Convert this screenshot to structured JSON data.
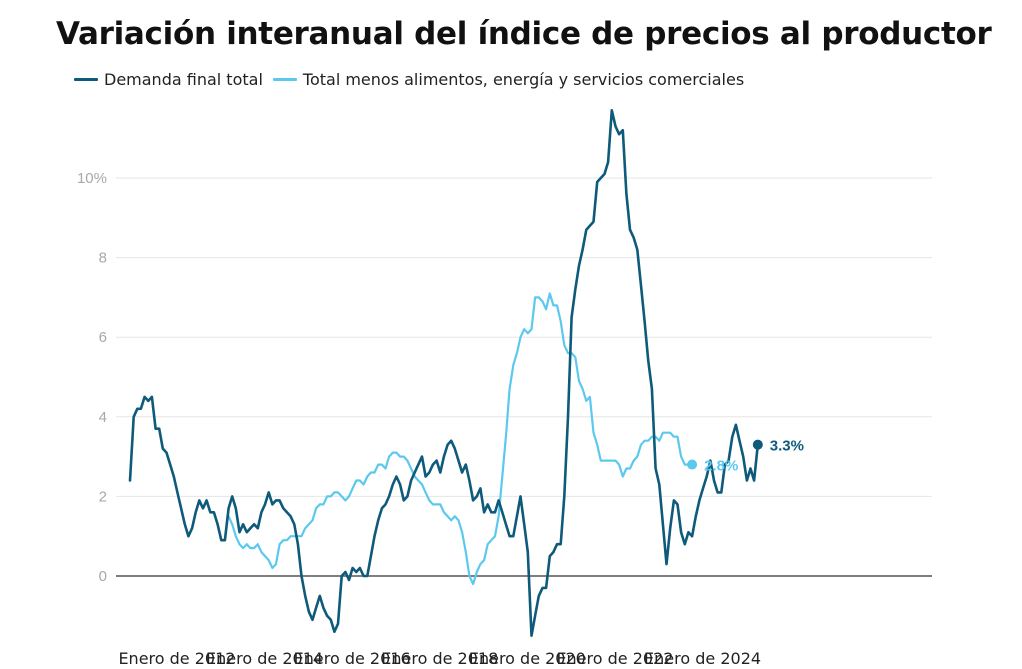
{
  "chart_data": {
    "type": "line",
    "title": "Variación interanual del índice de precios al productor",
    "x_start": "2011-10",
    "x_step": "month",
    "x_tick_labels": [
      "Enero de 2012",
      "Enero de 2014",
      "Enero de 2016",
      "Enero de 2018",
      "Enero de 2020",
      "Enero de 2022",
      "Enero de 2024"
    ],
    "x_tick_dates": [
      "2012-01",
      "2014-01",
      "2016-01",
      "2018-01",
      "2020-01",
      "2022-01",
      "2024-01"
    ],
    "y_ticks": [
      0,
      2,
      4,
      6,
      8,
      10
    ],
    "y_tick_labels": [
      "0",
      "2",
      "4",
      "6",
      "8",
      "10%"
    ],
    "ylim": [
      -1.5,
      12
    ],
    "grid": true,
    "legend": "top-left",
    "series": [
      {
        "name": "Demanda final total",
        "color": "#0e5a7a",
        "start": "2011-10",
        "end_label": "3.3%",
        "values": [
          2.4,
          4.0,
          4.2,
          4.2,
          4.5,
          4.4,
          4.5,
          3.7,
          3.7,
          3.2,
          3.1,
          2.8,
          2.5,
          2.1,
          1.7,
          1.3,
          1.0,
          1.2,
          1.6,
          1.9,
          1.7,
          1.9,
          1.6,
          1.6,
          1.3,
          0.9,
          0.9,
          1.7,
          2.0,
          1.7,
          1.1,
          1.3,
          1.1,
          1.2,
          1.3,
          1.2,
          1.6,
          1.8,
          2.1,
          1.8,
          1.9,
          1.9,
          1.7,
          1.6,
          1.5,
          1.3,
          0.8,
          0.0,
          -0.5,
          -0.9,
          -1.1,
          -0.8,
          -0.5,
          -0.8,
          -1.0,
          -1.1,
          -1.4,
          -1.2,
          0.0,
          0.1,
          -0.1,
          0.2,
          0.1,
          0.2,
          0.0,
          0.0,
          0.5,
          1.0,
          1.4,
          1.7,
          1.8,
          2.0,
          2.3,
          2.5,
          2.3,
          1.9,
          2.0,
          2.4,
          2.6,
          2.8,
          3.0,
          2.5,
          2.6,
          2.8,
          2.9,
          2.6,
          3.0,
          3.3,
          3.4,
          3.2,
          2.9,
          2.6,
          2.8,
          2.4,
          1.9,
          2.0,
          2.2,
          1.6,
          1.8,
          1.6,
          1.6,
          1.9,
          1.6,
          1.3,
          1.0,
          1.0,
          1.5,
          2.0,
          1.3,
          0.6,
          -1.5,
          -1.0,
          -0.5,
          -0.3,
          -0.3,
          0.5,
          0.6,
          0.8,
          0.8,
          2.0,
          4.0,
          6.5,
          7.2,
          7.8,
          8.2,
          8.7,
          8.8,
          8.9,
          9.9,
          10.0,
          10.1,
          10.4,
          11.7,
          11.3,
          11.1,
          11.2,
          9.6,
          8.7,
          8.5,
          8.2,
          7.3,
          6.4,
          5.4,
          4.7,
          2.7,
          2.3,
          1.3,
          0.3,
          1.2,
          1.9,
          1.8,
          1.1,
          0.8,
          1.1,
          1.0,
          1.5,
          1.9,
          2.2,
          2.5,
          2.9,
          2.4,
          2.1,
          2.1,
          2.8,
          2.9,
          3.5,
          3.8,
          3.4,
          3.0,
          2.4,
          2.7,
          2.4,
          3.3
        ]
      },
      {
        "name": "Total menos alimentos, energía y servicios comerciales",
        "color": "#5cc8ee",
        "start": "2014-01",
        "end_label": "2.8%",
        "values": [
          1.5,
          1.3,
          1.0,
          0.8,
          0.7,
          0.8,
          0.7,
          0.7,
          0.8,
          0.6,
          0.5,
          0.4,
          0.2,
          0.3,
          0.8,
          0.9,
          0.9,
          1.0,
          1.0,
          1.0,
          1.0,
          1.2,
          1.3,
          1.4,
          1.7,
          1.8,
          1.8,
          2.0,
          2.0,
          2.1,
          2.1,
          2.0,
          1.9,
          2.0,
          2.2,
          2.4,
          2.4,
          2.3,
          2.5,
          2.6,
          2.6,
          2.8,
          2.8,
          2.7,
          3.0,
          3.1,
          3.1,
          3.0,
          3.0,
          2.9,
          2.7,
          2.5,
          2.4,
          2.3,
          2.1,
          1.9,
          1.8,
          1.8,
          1.8,
          1.6,
          1.5,
          1.4,
          1.5,
          1.4,
          1.1,
          0.6,
          0.0,
          -0.2,
          0.1,
          0.3,
          0.4,
          0.8,
          0.9,
          1.0,
          1.5,
          2.5,
          3.5,
          4.7,
          5.3,
          5.6,
          6.0,
          6.2,
          6.1,
          6.2,
          7.0,
          7.0,
          6.9,
          6.7,
          7.1,
          6.8,
          6.8,
          6.4,
          5.8,
          5.6,
          5.6,
          5.5,
          4.9,
          4.7,
          4.4,
          4.5,
          3.6,
          3.3,
          2.9,
          2.9,
          2.9,
          2.9,
          2.9,
          2.8,
          2.5,
          2.7,
          2.7,
          2.9,
          3.0,
          3.3,
          3.4,
          3.4,
          3.5,
          3.5,
          3.4,
          3.6,
          3.6,
          3.6,
          3.5,
          3.5,
          3.0,
          2.8,
          2.8,
          2.8
        ]
      }
    ]
  }
}
